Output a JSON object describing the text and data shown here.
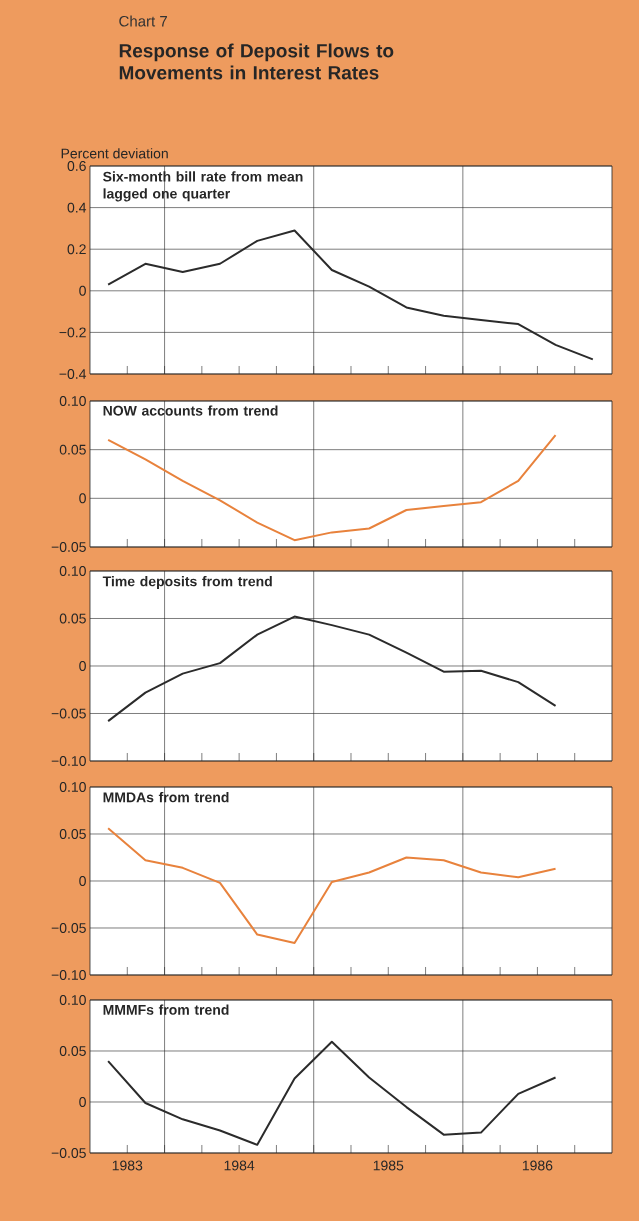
{
  "chart_data": [
    {
      "type": "line",
      "title": "Response of Deposit Flows to Movements in Interest Rates",
      "ylabel": "Percent deviation",
      "annotations": [
        "Chart 7"
      ],
      "xlim": [
        "1983-07-01",
        "1987-01-01"
      ],
      "ylim": [
        -0.4,
        0.6
      ],
      "grid": "y",
      "tick_labels": "y",
      "xticks": [
        {
          "value": "1983-10",
          "label": null
        },
        {
          "value": "1984-01",
          "label": null
        },
        {
          "value": "1984-04",
          "label": null
        },
        {
          "value": "1984-07",
          "label": null
        },
        {
          "value": "1984-10",
          "label": null
        },
        {
          "value": "1985-01",
          "label": null
        },
        {
          "value": "1985-04",
          "label": null
        },
        {
          "value": "1985-07",
          "label": null
        },
        {
          "value": "1985-10",
          "label": null
        },
        {
          "value": "1986-01",
          "label": null
        },
        {
          "value": "1986-04",
          "label": null
        },
        {
          "value": "1986-07",
          "label": null
        },
        {
          "value": "1986-10",
          "label": null
        }
      ],
      "yticks": [
        {
          "value": -0.4,
          "label": "−0.4"
        },
        {
          "value": -0.2,
          "label": "−0.2"
        },
        0,
        0.2,
        0.4,
        0.6
      ],
      "ref_lines": [
        {
          "axis": "x",
          "value": "1984-01"
        },
        {
          "axis": "x",
          "value": "1985-01"
        },
        {
          "axis": "x",
          "value": "1986-01"
        }
      ],
      "series": [
        {
          "name": "Six-month bill rate from mean lagged one quarter",
          "color": "#2b2b2b",
          "x": [
            "1983-08-15",
            "1983-11-15",
            "1984-02-15",
            "1984-05-15",
            "1984-08-15",
            "1984-11-15",
            "1985-02-15",
            "1985-05-15",
            "1985-08-15",
            "1985-11-15",
            "1986-02-15",
            "1986-05-15",
            "1986-08-15",
            "1986-11-15"
          ],
          "values": [
            0.03,
            0.13,
            0.09,
            0.13,
            0.24,
            0.29,
            0.1,
            0.02,
            -0.08,
            -0.12,
            -0.14,
            -0.16,
            -0.26,
            -0.33
          ]
        }
      ]
    },
    {
      "type": "line",
      "xlim": [
        "1983-07-01",
        "1987-01-01"
      ],
      "ylim": [
        -0.05,
        0.1
      ],
      "grid": "y",
      "tick_labels": "y",
      "xticks": [
        {
          "value": "1983-10",
          "label": null
        },
        {
          "value": "1984-01",
          "label": null
        },
        {
          "value": "1984-04",
          "label": null
        },
        {
          "value": "1984-07",
          "label": null
        },
        {
          "value": "1984-10",
          "label": null
        },
        {
          "value": "1985-01",
          "label": null
        },
        {
          "value": "1985-04",
          "label": null
        },
        {
          "value": "1985-07",
          "label": null
        },
        {
          "value": "1985-10",
          "label": null
        },
        {
          "value": "1986-01",
          "label": null
        },
        {
          "value": "1986-04",
          "label": null
        },
        {
          "value": "1986-07",
          "label": null
        },
        {
          "value": "1986-10",
          "label": null
        }
      ],
      "yticks": [
        {
          "value": -0.05,
          "label": "−0.05"
        },
        0,
        {
          "value": 0.05,
          "label": "0.05"
        },
        {
          "value": 0.1,
          "label": "0.10"
        }
      ],
      "ref_lines": [
        {
          "axis": "x",
          "value": "1984-01"
        },
        {
          "axis": "x",
          "value": "1985-01"
        },
        {
          "axis": "x",
          "value": "1986-01"
        }
      ],
      "series": [
        {
          "name": "NOW accounts from trend",
          "color": "#e8823c",
          "x": [
            "1983-08-15",
            "1983-11-15",
            "1984-02-15",
            "1984-05-15",
            "1984-08-15",
            "1984-11-15",
            "1985-02-15",
            "1985-05-15",
            "1985-08-15",
            "1985-11-15",
            "1986-02-15",
            "1986-05-15",
            "1986-08-15"
          ],
          "values": [
            0.06,
            0.04,
            0.018,
            -0.002,
            -0.025,
            -0.043,
            -0.035,
            -0.031,
            -0.012,
            -0.008,
            -0.004,
            0.018,
            0.065
          ]
        }
      ]
    },
    {
      "type": "line",
      "xlim": [
        "1983-07-01",
        "1987-01-01"
      ],
      "ylim": [
        -0.1,
        0.1
      ],
      "grid": "y",
      "tick_labels": "y",
      "xticks": [
        {
          "value": "1983-10",
          "label": null
        },
        {
          "value": "1984-01",
          "label": null
        },
        {
          "value": "1984-04",
          "label": null
        },
        {
          "value": "1984-07",
          "label": null
        },
        {
          "value": "1984-10",
          "label": null
        },
        {
          "value": "1985-01",
          "label": null
        },
        {
          "value": "1985-04",
          "label": null
        },
        {
          "value": "1985-07",
          "label": null
        },
        {
          "value": "1985-10",
          "label": null
        },
        {
          "value": "1986-01",
          "label": null
        },
        {
          "value": "1986-04",
          "label": null
        },
        {
          "value": "1986-07",
          "label": null
        },
        {
          "value": "1986-10",
          "label": null
        }
      ],
      "yticks": [
        {
          "value": -0.1,
          "label": "−0.10"
        },
        {
          "value": -0.05,
          "label": "−0.05"
        },
        0,
        {
          "value": 0.05,
          "label": "0.05"
        },
        {
          "value": 0.1,
          "label": "0.10"
        }
      ],
      "ref_lines": [
        {
          "axis": "x",
          "value": "1984-01"
        },
        {
          "axis": "x",
          "value": "1985-01"
        },
        {
          "axis": "x",
          "value": "1986-01"
        }
      ],
      "series": [
        {
          "name": "Time deposits from trend",
          "color": "#2b2b2b",
          "x": [
            "1983-08-15",
            "1983-11-15",
            "1984-02-15",
            "1984-05-15",
            "1984-08-15",
            "1984-11-15",
            "1985-02-15",
            "1985-05-15",
            "1985-08-15",
            "1985-11-15",
            "1986-02-15",
            "1986-05-15",
            "1986-08-15"
          ],
          "values": [
            -0.058,
            -0.028,
            -0.008,
            0.003,
            0.033,
            0.052,
            0.043,
            0.033,
            0.014,
            -0.006,
            -0.005,
            -0.017,
            -0.042
          ]
        }
      ]
    },
    {
      "type": "line",
      "xlim": [
        "1983-07-01",
        "1987-01-01"
      ],
      "ylim": [
        -0.1,
        0.1
      ],
      "grid": "y",
      "tick_labels": "y",
      "xticks": [
        {
          "value": "1983-10",
          "label": null
        },
        {
          "value": "1984-01",
          "label": null
        },
        {
          "value": "1984-04",
          "label": null
        },
        {
          "value": "1984-07",
          "label": null
        },
        {
          "value": "1984-10",
          "label": null
        },
        {
          "value": "1985-01",
          "label": null
        },
        {
          "value": "1985-04",
          "label": null
        },
        {
          "value": "1985-07",
          "label": null
        },
        {
          "value": "1985-10",
          "label": null
        },
        {
          "value": "1986-01",
          "label": null
        },
        {
          "value": "1986-04",
          "label": null
        },
        {
          "value": "1986-07",
          "label": null
        },
        {
          "value": "1986-10",
          "label": null
        }
      ],
      "yticks": [
        {
          "value": -0.1,
          "label": "−0.10"
        },
        {
          "value": -0.05,
          "label": "−0.05"
        },
        0,
        {
          "value": 0.05,
          "label": "0.05"
        },
        {
          "value": 0.1,
          "label": "0.10"
        }
      ],
      "ref_lines": [
        {
          "axis": "x",
          "value": "1984-01"
        },
        {
          "axis": "x",
          "value": "1985-01"
        },
        {
          "axis": "x",
          "value": "1986-01"
        }
      ],
      "series": [
        {
          "name": "MMDAs from trend",
          "color": "#e8823c",
          "x": [
            "1983-08-15",
            "1983-11-15",
            "1984-02-15",
            "1984-05-15",
            "1984-08-15",
            "1984-11-15",
            "1985-02-15",
            "1985-05-15",
            "1985-08-15",
            "1985-11-15",
            "1986-02-15",
            "1986-05-15",
            "1986-08-15"
          ],
          "values": [
            0.056,
            0.022,
            0.014,
            -0.002,
            -0.057,
            -0.066,
            -0.001,
            0.009,
            0.025,
            0.022,
            0.009,
            0.004,
            0.013
          ]
        }
      ]
    },
    {
      "type": "line",
      "xlim": [
        "1983-07-01",
        "1987-01-01"
      ],
      "ylim": [
        -0.05,
        0.1
      ],
      "grid": "y",
      "xticks": [
        {
          "value": "1983-10",
          "label": "1983"
        },
        {
          "value": "1984-01",
          "label": null
        },
        {
          "value": "1984-04",
          "label": null
        },
        {
          "value": "1984-07",
          "label": "1984"
        },
        {
          "value": "1984-10",
          "label": null
        },
        {
          "value": "1985-01",
          "label": null
        },
        {
          "value": "1985-04",
          "label": null
        },
        {
          "value": "1985-07",
          "label": "1985"
        },
        {
          "value": "1985-10",
          "label": null
        },
        {
          "value": "1986-01",
          "label": null
        },
        {
          "value": "1986-04",
          "label": null
        },
        {
          "value": "1986-07",
          "label": "1986"
        },
        {
          "value": "1986-10",
          "label": null
        }
      ],
      "yticks": [
        {
          "value": -0.05,
          "label": "−0.05"
        },
        0,
        {
          "value": 0.05,
          "label": "0.05"
        },
        {
          "value": 0.1,
          "label": "0.10"
        }
      ],
      "ref_lines": [
        {
          "axis": "x",
          "value": "1984-01"
        },
        {
          "axis": "x",
          "value": "1985-01"
        },
        {
          "axis": "x",
          "value": "1986-01"
        }
      ],
      "series": [
        {
          "name": "MMMFs from trend",
          "color": "#2b2b2b",
          "x": [
            "1983-08-15",
            "1983-11-15",
            "1984-02-15",
            "1984-05-15",
            "1984-08-15",
            "1984-11-15",
            "1985-02-15",
            "1985-05-15",
            "1985-08-15",
            "1985-11-15",
            "1986-02-15",
            "1986-05-15",
            "1986-08-15"
          ],
          "values": [
            0.04,
            -0.001,
            -0.017,
            -0.028,
            -0.042,
            0.023,
            0.059,
            0.024,
            -0.005,
            -0.032,
            -0.03,
            0.008,
            0.024
          ]
        }
      ]
    }
  ]
}
